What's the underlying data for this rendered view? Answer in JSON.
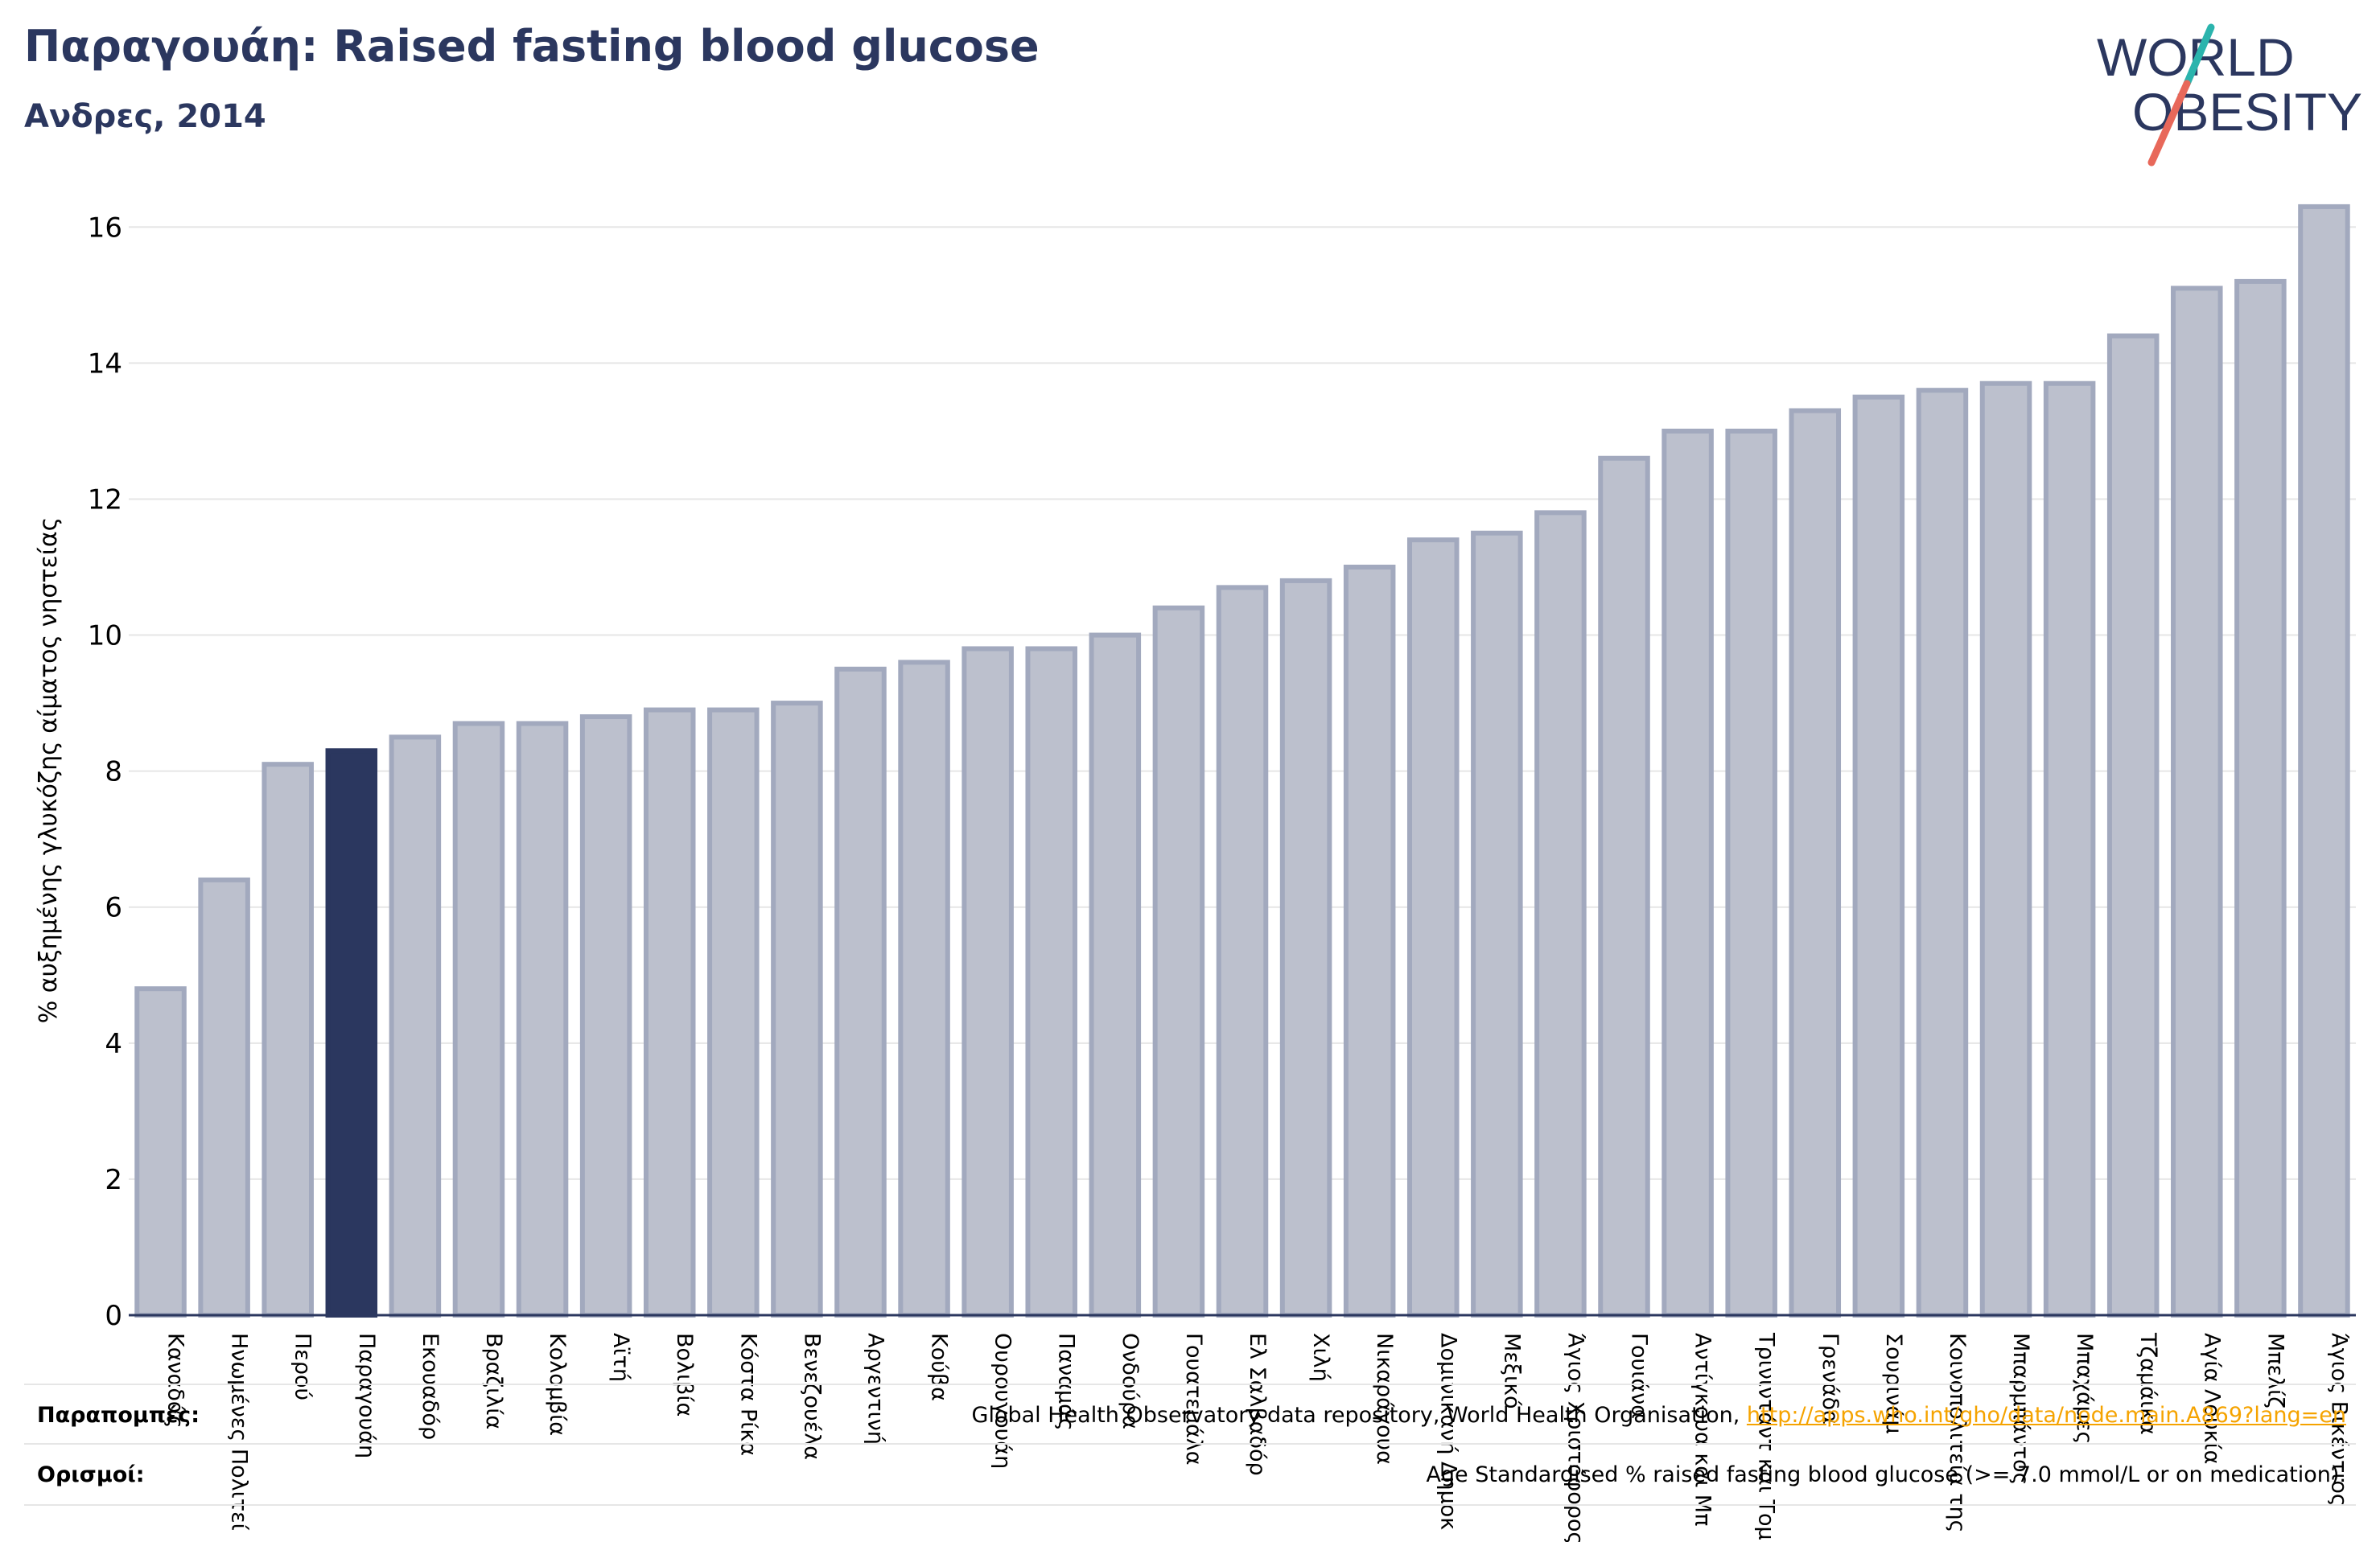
{
  "header": {
    "title": "Παραγουάη: Raised fasting blood glucose",
    "subtitle": "Ανδρες, 2014"
  },
  "logo": {
    "line1": "WORLD",
    "line2": "OBESITY"
  },
  "colors": {
    "bar": "#bcc0cd",
    "bar_stroke": "#a2a9be",
    "highlight": "#2b375f",
    "title": "#2b375f",
    "link": "#f5a300"
  },
  "chart_data": {
    "type": "bar",
    "ylabel": "% αυξημένης γλυκόζης αίματος νηστείας",
    "ylim": [
      0,
      16.5
    ],
    "yticks": [
      0,
      2,
      4,
      6,
      8,
      10,
      12,
      14,
      16
    ],
    "grid": true,
    "highlight": "Παραγουάη",
    "categories": [
      "Καναδάς",
      "Ηνωμένες Πολιτείες",
      "Περού",
      "Παραγουάη",
      "Εκουαδόρ",
      "Βραζιλία",
      "Κολομβία",
      "Αϊτή",
      "Βολιβία",
      "Κόστα Ρίκα",
      "Βενεζουέλα",
      "Αργεντινή",
      "Κούβα",
      "Ουρουγουάη",
      "Παναμάς",
      "Ονδούρα",
      "Γουατεμάλα",
      "Ελ Σαλβαδόρ",
      "Χιλή",
      "Νικαράγουα",
      "Δομινικανή Δημοκρατία",
      "Μεξικό",
      "Άγιος Χριστόφορος και Νέβις",
      "Γουιάνα",
      "Αντίγκουα και Μπαρμπούντα",
      "Τρινιντάντ και Τομπάγκο",
      "Γρενάδα",
      "Σουρινάμ",
      "Κοινοπολιτεία της Δομινίκας",
      "Μπαρμπάντος",
      "Μπαχάμες",
      "Τζαμάικα",
      "Αγία Λουκία",
      "Μπελίζ",
      "Άγιος Βικέντιος και Γρεναδίνες"
    ],
    "display_labels": [
      "Καναδάς",
      "Ηνωμένες Πολιτεί",
      "Περού",
      "Παραγουάη",
      "Εκουαδόρ",
      "Βραζιλία",
      "Κολομβία",
      "Αϊτή",
      "Βολιβία",
      "Κόστα Ρίκα",
      "Βενεζουέλα",
      "Αργεντινή",
      "Κούβα",
      "Ουρουγουάη",
      "Παναμάς",
      "Ονδούρα",
      "Γουατεμάλα",
      "Ελ Σαλβαδόρ",
      "Χιλή",
      "Νικαράγουα",
      "Δομινικανή Δημοκ",
      "Μεξικό",
      "Άγιος Χριστόφορος κ",
      "Γουιάνα",
      "Αντίγκουα και Μπ",
      "Τρινιντάντ και Τομ",
      "Γρενάδα",
      "Σουρινάμ",
      "Κοινοπολιτεία της",
      "Μπαρμπάντος",
      "Μπαχάμες",
      "Τζαμάικα",
      "Αγία Λουκία",
      "Μπελίζ",
      "Άγιος Βικέντιος"
    ],
    "values": [
      4.8,
      6.4,
      8.1,
      8.3,
      8.5,
      8.7,
      8.7,
      8.8,
      8.9,
      8.9,
      9.0,
      9.5,
      9.6,
      9.8,
      9.8,
      10.0,
      10.4,
      10.7,
      10.8,
      11.0,
      11.4,
      11.5,
      11.8,
      12.6,
      13.0,
      13.0,
      13.3,
      13.5,
      13.6,
      13.7,
      13.7,
      14.4,
      15.1,
      15.2,
      16.3
    ]
  },
  "footer": {
    "sources_label": "Παραπομπές:",
    "sources_text": "Global Health Observatory data repository, World Health Organisation, ",
    "sources_link": "http://apps.who.int/gho/data/node.main.A869?lang=en",
    "definitions_label": "Ορισμοί:",
    "definitions_text": "Age Standardised % raised fasting blood glucose (>= 7.0 mmol/L or on medication)."
  }
}
